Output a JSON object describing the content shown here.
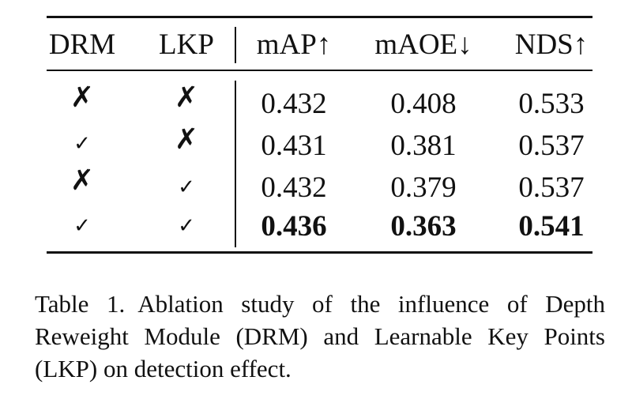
{
  "table": {
    "headers": [
      "DRM",
      "LKP",
      "mAP↑",
      "mAOE↓",
      "NDS↑"
    ],
    "rows": [
      {
        "drm": "✗",
        "lkp": "✗",
        "map": "0.432",
        "maoe": "0.408",
        "nds": "0.533",
        "bold": false
      },
      {
        "drm": "✓",
        "lkp": "✗",
        "map": "0.431",
        "maoe": "0.381",
        "nds": "0.537",
        "bold": false
      },
      {
        "drm": "✗",
        "lkp": "✓",
        "map": "0.432",
        "maoe": "0.379",
        "nds": "0.537",
        "bold": false
      },
      {
        "drm": "✓",
        "lkp": "✓",
        "map": "0.436",
        "maoe": "0.363",
        "nds": "0.541",
        "bold": true
      }
    ]
  },
  "caption": {
    "label": "Table 1.",
    "text": "Ablation study of the influence of Depth Reweight Module (DRM) and Learnable Key Points (LKP) on detection effect."
  }
}
